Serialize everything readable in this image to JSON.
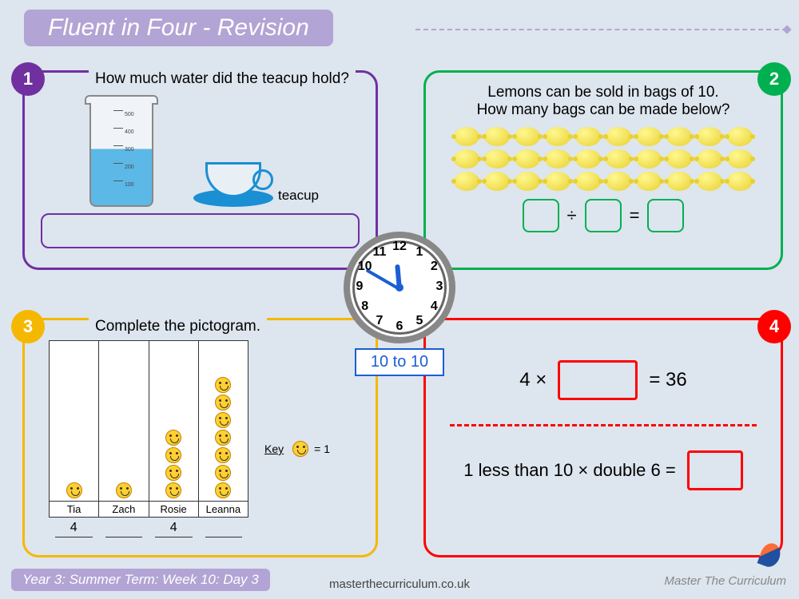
{
  "title": "Fluent in Four - Revision",
  "badges": {
    "b1": "1",
    "b2": "2",
    "b3": "3",
    "b4": "4"
  },
  "q1": {
    "question": "How much water did the teacup hold?",
    "teacup_label": "teacup",
    "beaker_scale": [
      "500",
      "400",
      "300",
      "200",
      "100"
    ],
    "beaker_unit": "500mL",
    "water_level_pct": 55,
    "border_color": "#7030a0"
  },
  "q2": {
    "line1": "Lemons can be sold in bags of 10.",
    "line2": "How many bags can be made below?",
    "lemon_rows": 3,
    "lemons_per_row": 10,
    "op": "÷",
    "eq": "=",
    "border_color": "#00b050"
  },
  "q3": {
    "question": "Complete the pictogram.",
    "names": [
      "Tia",
      "Zach",
      "Rosie",
      "Leanna"
    ],
    "smileys": [
      1,
      1,
      4,
      7
    ],
    "values": [
      "4",
      "",
      "4",
      ""
    ],
    "key_label": "Key",
    "key_val": "= 1",
    "border_color": "#f5b800"
  },
  "q4": {
    "eq1_left": "4 ×",
    "eq1_right": "= 36",
    "eq2": "1 less than 10 × double 6 =",
    "border_color": "#ff0000"
  },
  "clock": {
    "label": "10 to 10",
    "hour_angle": -95,
    "minute_angle": -150,
    "numbers": [
      "12",
      "1",
      "2",
      "3",
      "4",
      "5",
      "6",
      "7",
      "8",
      "9",
      "10",
      "11"
    ]
  },
  "footer": {
    "info": "Year 3: Summer Term: Week 10: Day 3",
    "url": "masterthecurriculum.co.uk",
    "logo": "Master The Curriculum"
  },
  "colors": {
    "page_bg": "#dde5ee",
    "title_bg": "#b2a4d4",
    "lemon_fill": "#e8d030",
    "smiley_fill": "#ffd030",
    "clock_border": "#888",
    "clock_hand": "#1a5fd4",
    "water": "#5cb8e6"
  }
}
